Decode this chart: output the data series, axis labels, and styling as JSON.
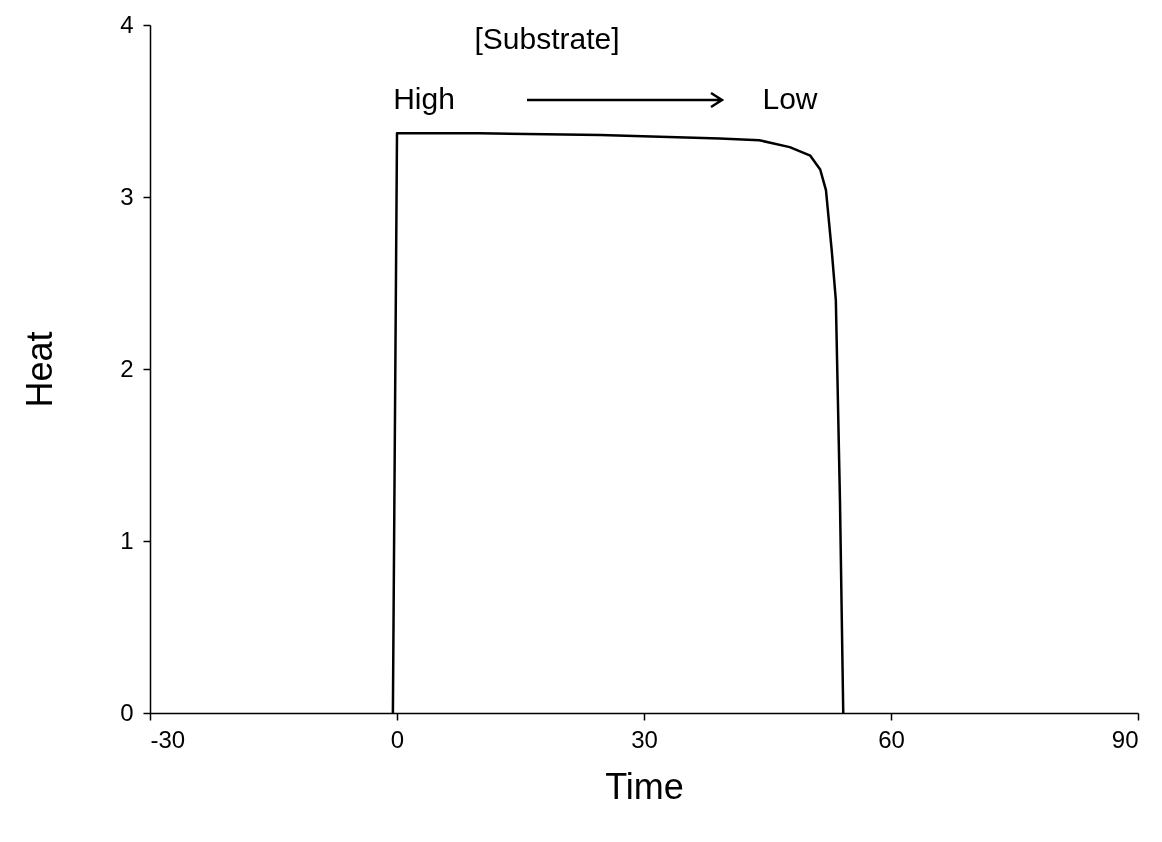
{
  "chart_data": {
    "type": "line",
    "xlabel": "Time",
    "ylabel": "Heat",
    "annotations": [
      "[Substrate]",
      "High",
      "Low"
    ],
    "x": [
      -0.5,
      0,
      10,
      24.7,
      39.2,
      44,
      47.7,
      50.2,
      51.4,
      52.1,
      52.8,
      53.3,
      53.8,
      54.2
    ],
    "series": [
      {
        "color": "#000000",
        "values": [
          0,
          3.37,
          3.37,
          3.36,
          3.34,
          3.33,
          3.29,
          3.24,
          3.16,
          3.04,
          2.69,
          2.4,
          1.24,
          0
        ]
      }
    ],
    "xlim": [
      -30,
      90
    ],
    "xticks": [
      -30,
      0,
      30,
      60,
      90
    ],
    "ylim": [
      0,
      4
    ],
    "yticks": [
      0,
      1,
      2,
      3,
      4
    ],
    "grid": false
  }
}
